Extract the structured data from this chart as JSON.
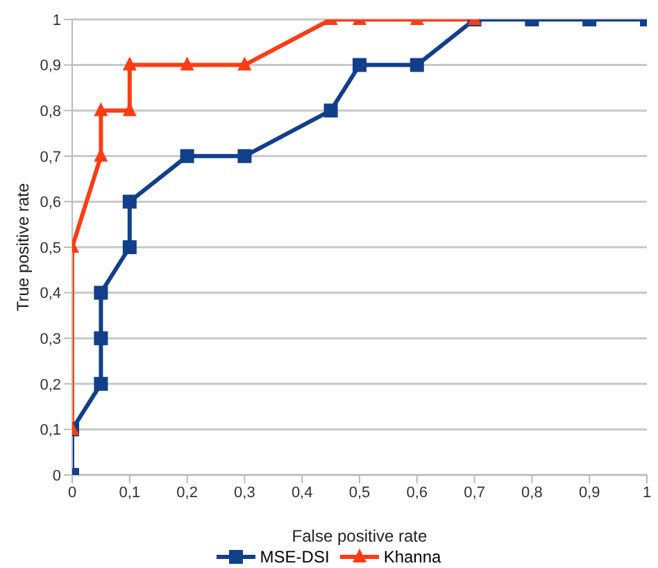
{
  "chart_data": {
    "type": "line",
    "xlabel": "False positive rate",
    "ylabel": "True positive rate",
    "series": [
      {
        "name": "MSE-DSI",
        "color": "#123f8a",
        "marker": "square",
        "x": [
          0,
          0,
          0.05,
          0.05,
          0.05,
          0.1,
          0.1,
          0.2,
          0.3,
          0.45,
          0.5,
          0.6,
          0.7,
          0.8,
          0.9,
          1
        ],
        "values": [
          0,
          0.1,
          0.2,
          0.3,
          0.4,
          0.5,
          0.6,
          0.7,
          0.7,
          0.8,
          0.9,
          0.9,
          1,
          1,
          1,
          1
        ]
      },
      {
        "name": "Khanna",
        "color": "#ff3c14",
        "marker": "triangle",
        "x": [
          0,
          0,
          0.05,
          0.05,
          0.1,
          0.1,
          0.2,
          0.3,
          0.45,
          0.5,
          0.6,
          0.7
        ],
        "values": [
          0.1,
          0.5,
          0.7,
          0.8,
          0.8,
          0.9,
          0.9,
          0.9,
          1,
          1,
          1,
          1
        ]
      }
    ],
    "xlim": [
      0,
      1
    ],
    "ylim": [
      0,
      1
    ],
    "xticks": [
      0,
      {
        "value": 0.1,
        "label": "0,1"
      },
      {
        "value": 0.2,
        "label": "0,2"
      },
      {
        "value": 0.3,
        "label": "0,3"
      },
      {
        "value": 0.4,
        "label": "0,4"
      },
      {
        "value": 0.5,
        "label": "0,5"
      },
      {
        "value": 0.6,
        "label": "0,6"
      },
      {
        "value": 0.7,
        "label": "0,7"
      },
      {
        "value": 0.8,
        "label": "0,8"
      },
      {
        "value": 0.9,
        "label": "0,9"
      },
      1
    ],
    "yticks": [
      0,
      {
        "value": 0.1,
        "label": "0,1"
      },
      {
        "value": 0.2,
        "label": "0,2"
      },
      {
        "value": 0.3,
        "label": "0,3"
      },
      {
        "value": 0.4,
        "label": "0,4"
      },
      {
        "value": 0.5,
        "label": "0,5"
      },
      {
        "value": 0.6,
        "label": "0,6"
      },
      {
        "value": 0.7,
        "label": "0,7"
      },
      {
        "value": 0.8,
        "label": "0,8"
      },
      {
        "value": 0.9,
        "label": "0,9"
      },
      1
    ],
    "grid": "y",
    "legend": "bottom"
  }
}
